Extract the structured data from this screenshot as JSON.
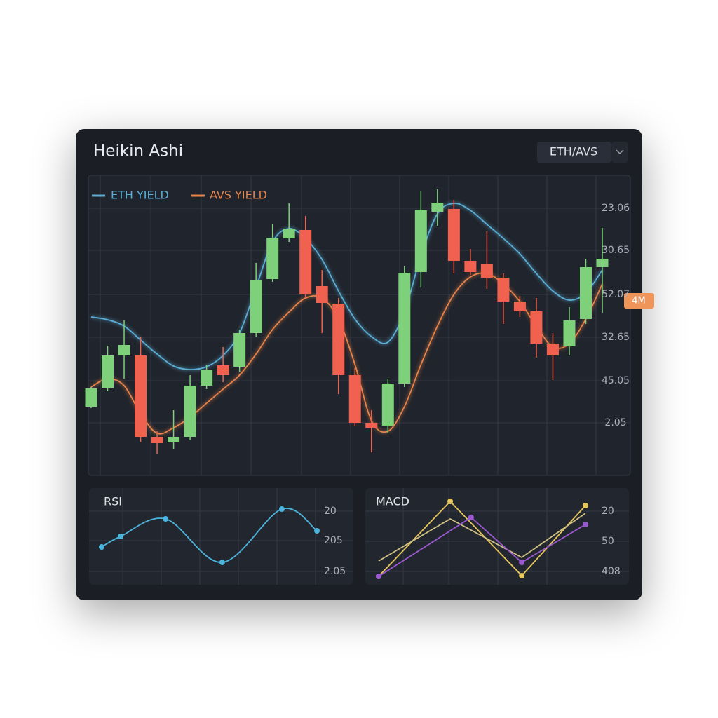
{
  "header": {
    "title": "Heikin Ashi",
    "pair": "ETH/AVS"
  },
  "chart_data": [
    {
      "type": "candlestick",
      "series": [
        {
          "name": "ETH YIELD",
          "color": "#5aaed6",
          "values": [
            57,
            56,
            53.75,
            48.75,
            43.75,
            39.5,
            38.25,
            39.25,
            43.25,
            51.25,
            67.5,
            83.75,
            88.5,
            85,
            77.5,
            66.25,
            56.25,
            50,
            48,
            58.75,
            78.75,
            93.75,
            97.5,
            95,
            90,
            85,
            79.5,
            72.5,
            66.25,
            63,
            65.5,
            73.75
          ]
        },
        {
          "name": "AVS YIELD",
          "color": "#e8834a",
          "values": [
            32,
            35,
            32.5,
            22.5,
            15.5,
            17.5,
            21.25,
            26.25,
            31.25,
            36.25,
            43.75,
            52.5,
            58.75,
            63.75,
            63.75,
            56.25,
            40,
            20,
            16.25,
            25,
            40,
            53.75,
            65,
            71.25,
            72.5,
            68.75,
            62.5,
            53.75,
            46.25,
            47.5,
            56.25,
            68.75
          ]
        }
      ],
      "candles": {
        "open": [
          25,
          31.75,
          43.25,
          43.25,
          14.25,
          12.25,
          14.25,
          32.5,
          39.75,
          39.25,
          51.25,
          70.5,
          85,
          88,
          68,
          61.75,
          36.25,
          19.25,
          18.25,
          33.25,
          73,
          94.5,
          95.5,
          77,
          76,
          71,
          62.5,
          59,
          47.5,
          46.5,
          56.25,
          74.75
        ],
        "close": [
          31.5,
          43.25,
          47,
          14.25,
          12,
          14.25,
          32.5,
          38.25,
          36.25,
          51.25,
          70,
          85.25,
          88.5,
          65,
          62,
          36.25,
          19.25,
          17.5,
          33.25,
          72.75,
          95,
          97.75,
          77,
          73,
          71,
          62.5,
          59,
          47.5,
          43.25,
          55.75,
          74.75,
          77.75
        ],
        "high": [
          32,
          46.75,
          55.75,
          50,
          16.25,
          23.75,
          36.25,
          40,
          46.25,
          52.5,
          76.25,
          90,
          97.5,
          93,
          73.75,
          63.75,
          38.75,
          23.75,
          35,
          75,
          102,
          102.5,
          98.75,
          81.25,
          87.5,
          72.5,
          64.5,
          63.75,
          51.25,
          60.5,
          77.75,
          88.75
        ],
        "low": [
          24.5,
          30.5,
          35,
          12.5,
          8,
          10,
          13,
          31.25,
          33.75,
          37.5,
          50,
          69.5,
          83.75,
          63.75,
          51.25,
          29.5,
          18,
          8.75,
          15.5,
          32,
          67.5,
          89.5,
          72.5,
          72,
          67,
          54.5,
          57,
          42.5,
          34.5,
          43.25,
          54.5,
          58.5
        ]
      },
      "up_color": "#7ed07a",
      "down_color": "#f0624f",
      "ylim": [
        0,
        105
      ],
      "axis_labels": [
        "23.06",
        "30.65",
        "52.07",
        "32.65",
        "45.05",
        "2.05"
      ],
      "badge": "4M",
      "grid": true
    },
    {
      "type": "line",
      "title": "RSI",
      "color": "#4bb4dc",
      "x": [
        0,
        8.8,
        29.7,
        56,
        83.7,
        100
      ],
      "values": [
        50,
        65,
        90,
        28,
        104,
        73
      ],
      "xlim": [
        0,
        100
      ],
      "ylim": [
        0,
        110
      ],
      "smooth": true,
      "markers": true,
      "axis_labels": [
        "20",
        "205",
        "2.05"
      ],
      "grid": true
    },
    {
      "type": "line",
      "title": "MACD",
      "series": [
        {
          "color": "#e6c65a",
          "x": [
            0,
            34.6,
            69.2,
            100
          ],
          "values": [
            8,
            115,
            9,
            109
          ],
          "markers": true
        },
        {
          "color": "#cfc083",
          "x": [
            0,
            34.6,
            69.2,
            100
          ],
          "values": [
            30,
            90,
            35,
            98
          ],
          "markers": false
        },
        {
          "color": "#9b59d0",
          "x": [
            0,
            44.7,
            69.2,
            100
          ],
          "values": [
            8,
            92,
            28,
            82
          ],
          "markers": true
        }
      ],
      "xlim": [
        0,
        100
      ],
      "ylim": [
        0,
        120
      ],
      "axis_labels": [
        "20",
        "50",
        "408"
      ],
      "grid": true
    }
  ]
}
